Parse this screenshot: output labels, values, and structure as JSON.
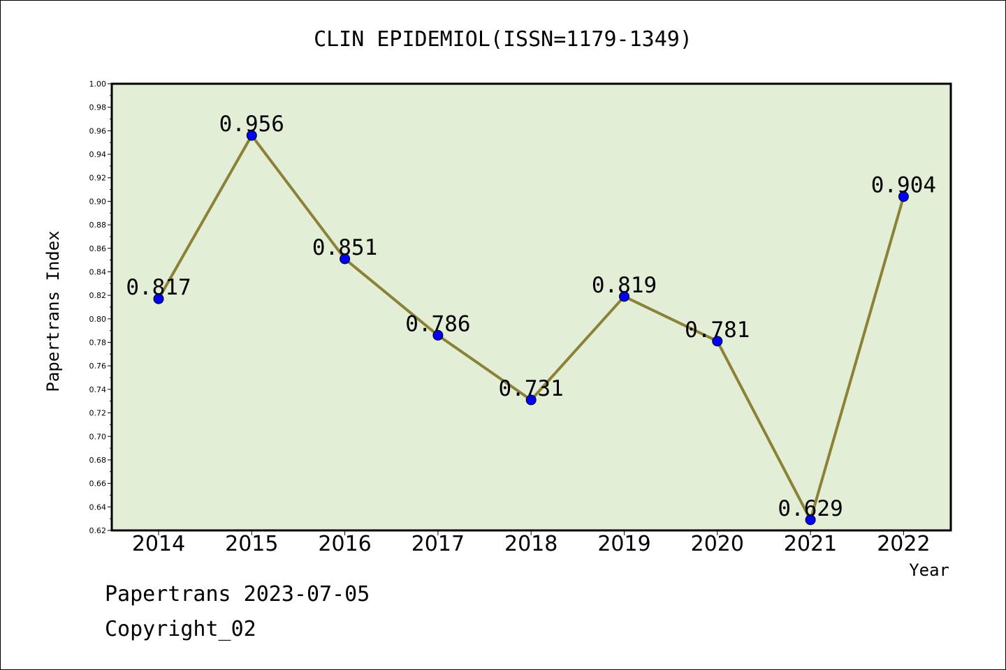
{
  "chart_data": {
    "type": "line",
    "title": "CLIN EPIDEMIOL(ISSN=1179-1349)",
    "xlabel": "Year",
    "ylabel": "Papertrans Index",
    "categories": [
      "2014",
      "2015",
      "2016",
      "2017",
      "2018",
      "2019",
      "2020",
      "2021",
      "2022"
    ],
    "values": [
      0.817,
      0.956,
      0.851,
      0.786,
      0.731,
      0.819,
      0.781,
      0.629,
      0.904
    ],
    "data_labels": [
      "0.817",
      "0.956",
      "0.851",
      "0.786",
      "0.731",
      "0.819",
      "0.781",
      "0.629",
      "0.904"
    ],
    "ylim": [
      0.62,
      1.0
    ],
    "yticks": [
      "0.62",
      "0.64",
      "0.66",
      "0.68",
      "0.70",
      "0.72",
      "0.74",
      "0.76",
      "0.78",
      "0.80",
      "0.82",
      "0.84",
      "0.86",
      "0.88",
      "0.90",
      "0.92",
      "0.94",
      "0.96",
      "0.98",
      "1.00"
    ],
    "grid": false,
    "colors": {
      "plot_background": "#e2efd6",
      "line": "#8b8238",
      "marker": "#0000ff",
      "axes": "#000000"
    }
  },
  "footer": {
    "line1": "Papertrans 2023-07-05",
    "line2": "Copyright_02"
  }
}
